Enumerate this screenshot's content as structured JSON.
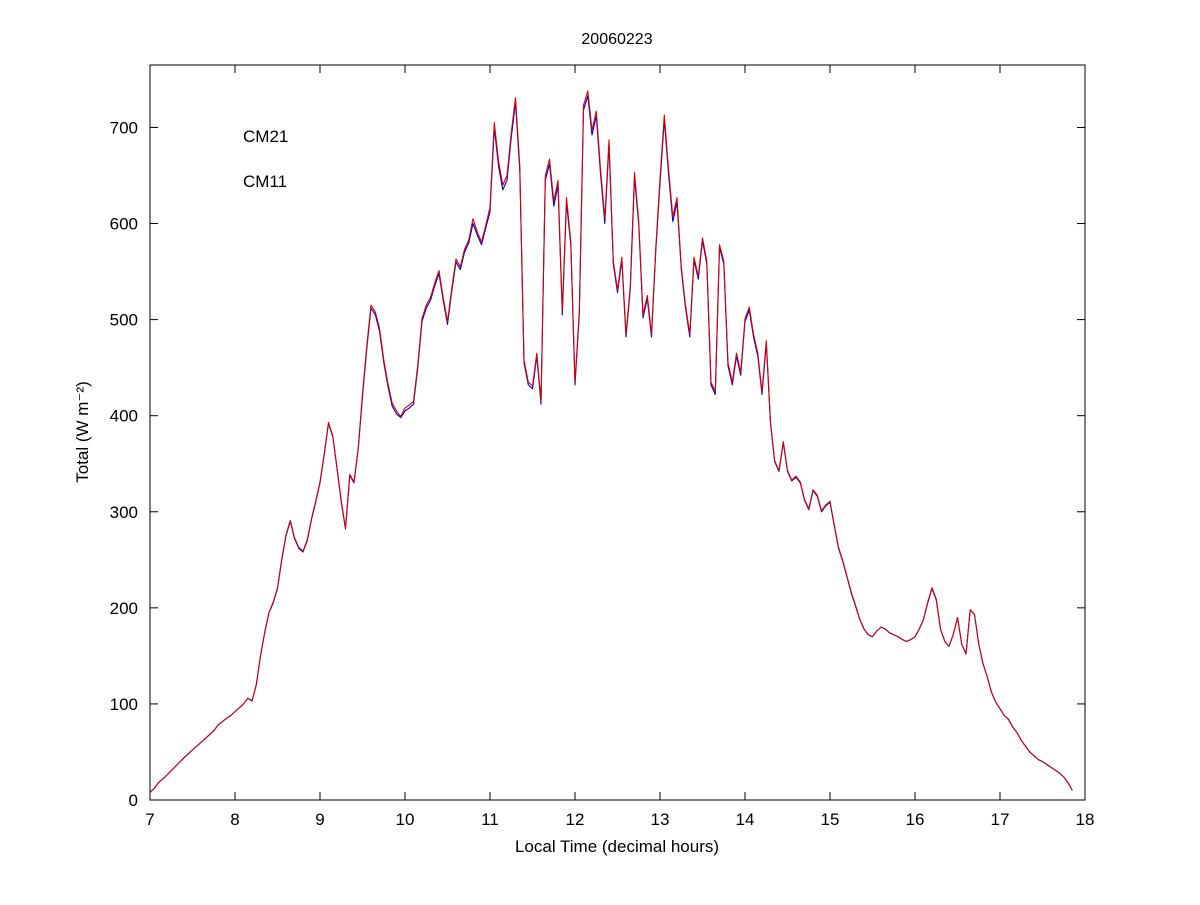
{
  "figure": {
    "background": "#ffffff",
    "axis_color": "#000000"
  },
  "chart_data": {
    "type": "line",
    "title": "20060223",
    "xlabel": "Local Time (decimal hours)",
    "ylabel": "Total (W m⁻²)",
    "xlim": [
      7,
      18
    ],
    "ylim": [
      0,
      765
    ],
    "xticks": [
      7,
      8,
      9,
      10,
      11,
      12,
      13,
      14,
      15,
      16,
      17,
      18
    ],
    "yticks": [
      0,
      100,
      200,
      300,
      400,
      500,
      600,
      700
    ],
    "grid": false,
    "legend_position": "upper-left-inside-no-box",
    "x": [
      7.0,
      7.05,
      7.1,
      7.15,
      7.2,
      7.3,
      7.4,
      7.5,
      7.6,
      7.7,
      7.75,
      7.8,
      7.9,
      7.95,
      8.0,
      8.05,
      8.1,
      8.15,
      8.2,
      8.25,
      8.3,
      8.35,
      8.4,
      8.45,
      8.5,
      8.55,
      8.6,
      8.65,
      8.7,
      8.75,
      8.8,
      8.85,
      8.9,
      8.95,
      9.0,
      9.05,
      9.1,
      9.15,
      9.2,
      9.25,
      9.3,
      9.35,
      9.4,
      9.45,
      9.5,
      9.55,
      9.6,
      9.65,
      9.7,
      9.75,
      9.8,
      9.85,
      9.9,
      9.95,
      10.0,
      10.05,
      10.1,
      10.15,
      10.2,
      10.25,
      10.3,
      10.35,
      10.4,
      10.45,
      10.5,
      10.55,
      10.6,
      10.65,
      10.7,
      10.75,
      10.8,
      10.85,
      10.9,
      10.95,
      11.0,
      11.05,
      11.1,
      11.15,
      11.2,
      11.25,
      11.3,
      11.35,
      11.4,
      11.45,
      11.5,
      11.55,
      11.6,
      11.65,
      11.7,
      11.75,
      11.8,
      11.85,
      11.9,
      11.95,
      12.0,
      12.05,
      12.1,
      12.15,
      12.2,
      12.25,
      12.3,
      12.35,
      12.4,
      12.45,
      12.5,
      12.55,
      12.6,
      12.65,
      12.7,
      12.75,
      12.8,
      12.85,
      12.9,
      12.95,
      13.0,
      13.05,
      13.1,
      13.15,
      13.2,
      13.25,
      13.3,
      13.35,
      13.4,
      13.45,
      13.5,
      13.55,
      13.6,
      13.65,
      13.7,
      13.75,
      13.8,
      13.85,
      13.9,
      13.95,
      14.0,
      14.05,
      14.1,
      14.15,
      14.2,
      14.25,
      14.3,
      14.35,
      14.4,
      14.45,
      14.5,
      14.55,
      14.6,
      14.65,
      14.7,
      14.75,
      14.8,
      14.85,
      14.9,
      14.95,
      15.0,
      15.05,
      15.1,
      15.15,
      15.2,
      15.25,
      15.3,
      15.35,
      15.4,
      15.45,
      15.5,
      15.55,
      15.6,
      15.65,
      15.7,
      15.75,
      15.8,
      15.85,
      15.9,
      15.95,
      16.0,
      16.05,
      16.1,
      16.15,
      16.2,
      16.25,
      16.3,
      16.35,
      16.4,
      16.45,
      16.5,
      16.55,
      16.6,
      16.65,
      16.7,
      16.75,
      16.8,
      16.85,
      16.9,
      16.95,
      17.0,
      17.05,
      17.1,
      17.15,
      17.2,
      17.25,
      17.3,
      17.35,
      17.4,
      17.45,
      17.5,
      17.55,
      17.6,
      17.65,
      17.7,
      17.75,
      17.8,
      17.85
    ],
    "series": [
      {
        "name": "CM21",
        "color": "#0000d0",
        "values": [
          8,
          12,
          18,
          22,
          26,
          35,
          44,
          52,
          60,
          68,
          72,
          78,
          85,
          88,
          92,
          96,
          100,
          106,
          103,
          120,
          150,
          175,
          195,
          205,
          220,
          250,
          275,
          290,
          272,
          262,
          258,
          270,
          292,
          310,
          330,
          360,
          392,
          378,
          345,
          310,
          282,
          338,
          330,
          365,
          420,
          470,
          512,
          505,
          488,
          455,
          430,
          410,
          402,
          398,
          405,
          408,
          412,
          450,
          498,
          512,
          520,
          535,
          548,
          520,
          495,
          530,
          560,
          552,
          570,
          580,
          600,
          588,
          578,
          595,
          612,
          700,
          660,
          635,
          645,
          690,
          726,
          655,
          455,
          432,
          428,
          462,
          412,
          645,
          662,
          618,
          640,
          505,
          622,
          578,
          432,
          505,
          718,
          733,
          692,
          712,
          652,
          600,
          682,
          558,
          528,
          562,
          482,
          532,
          648,
          598,
          502,
          522,
          482,
          572,
          642,
          708,
          652,
          602,
          622,
          552,
          512,
          482,
          562,
          542,
          582,
          558,
          432,
          422,
          575,
          558,
          452,
          432,
          462,
          442,
          498,
          510,
          482,
          462,
          422,
          475,
          392,
          352,
          342,
          372,
          342,
          332,
          336,
          330,
          312,
          302,
          322,
          316,
          300,
          306,
          310,
          285,
          262,
          248,
          232,
          215,
          202,
          188,
          178,
          172,
          170,
          176,
          180,
          178,
          174,
          172,
          170,
          167,
          165,
          167,
          170,
          178,
          188,
          205,
          220,
          208,
          178,
          165,
          160,
          172,
          190,
          162,
          152,
          198,
          193,
          162,
          142,
          128,
          112,
          102,
          95,
          88,
          84,
          76,
          70,
          62,
          56,
          50,
          46,
          42,
          40,
          37,
          34,
          31,
          28,
          24,
          18,
          10
        ]
      },
      {
        "name": "CM11",
        "color": "#d80000",
        "values": [
          8,
          12,
          18,
          22,
          26,
          35,
          44,
          52,
          60,
          68,
          72,
          78,
          85,
          88,
          92,
          96,
          100,
          106,
          103,
          120,
          150,
          175,
          195,
          206,
          221,
          251,
          276,
          291,
          273,
          263,
          259,
          271,
          293,
          311,
          331,
          361,
          393,
          379,
          346,
          311,
          283,
          339,
          331,
          366,
          423,
          473,
          515,
          508,
          491,
          458,
          433,
          413,
          405,
          399,
          408,
          411,
          415,
          453,
          501,
          515,
          523,
          538,
          551,
          523,
          498,
          533,
          563,
          555,
          573,
          583,
          605,
          591,
          581,
          598,
          617,
          705,
          665,
          640,
          650,
          695,
          731,
          660,
          458,
          435,
          431,
          465,
          415,
          650,
          667,
          623,
          645,
          508,
          627,
          581,
          435,
          508,
          723,
          738,
          697,
          717,
          657,
          605,
          687,
          561,
          531,
          565,
          485,
          535,
          653,
          601,
          505,
          525,
          485,
          575,
          647,
          713,
          657,
          607,
          627,
          555,
          515,
          485,
          565,
          545,
          585,
          561,
          435,
          425,
          578,
          561,
          455,
          435,
          465,
          445,
          501,
          513,
          485,
          465,
          425,
          478,
          393,
          353,
          343,
          373,
          343,
          333,
          337,
          331,
          313,
          303,
          323,
          317,
          301,
          307,
          311,
          286,
          263,
          249,
          233,
          216,
          203,
          188,
          178,
          172,
          170,
          176,
          180,
          178,
          174,
          172,
          170,
          167,
          165,
          167,
          170,
          178,
          188,
          206,
          221,
          209,
          178,
          165,
          160,
          172,
          190,
          162,
          152,
          198,
          193,
          162,
          142,
          128,
          112,
          102,
          95,
          88,
          84,
          76,
          70,
          62,
          56,
          50,
          46,
          42,
          40,
          37,
          34,
          31,
          28,
          24,
          18,
          10
        ]
      }
    ]
  }
}
